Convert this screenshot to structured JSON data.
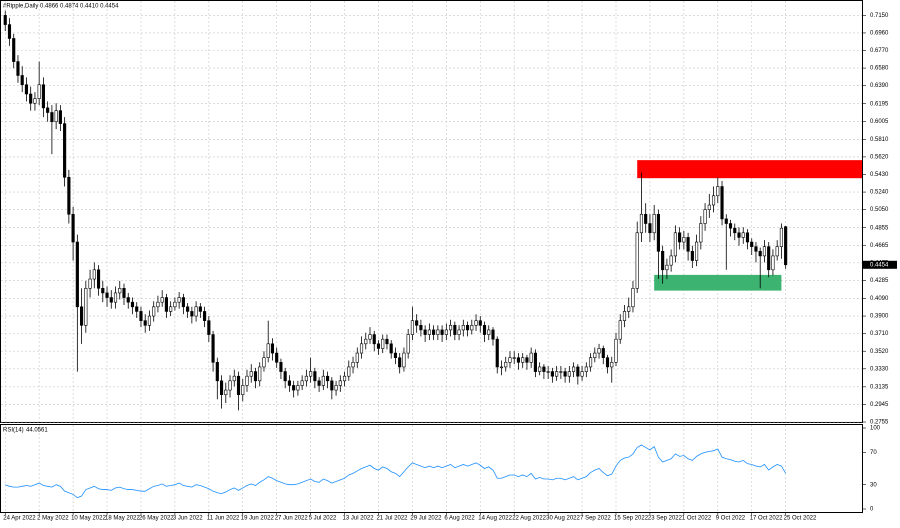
{
  "chart_data": {
    "type": "candlestick",
    "title": "#Ripple,Daily  0.4866 0.4874 0.4410 0.4454",
    "xlim": [
      -1,
      202
    ],
    "xticks": [
      {
        "value": 0,
        "label": "24 Apr 2022"
      },
      {
        "value": 8,
        "label": "2 May 2022"
      },
      {
        "value": 16,
        "label": "10 May 2022"
      },
      {
        "value": 24,
        "label": "18 May 2022"
      },
      {
        "value": 32,
        "label": "26 May 2022"
      },
      {
        "value": 40,
        "label": "3 Jun 2022"
      },
      {
        "value": 48,
        "label": "11 Jun 2022"
      },
      {
        "value": 56,
        "label": "19 Jun 2022"
      },
      {
        "value": 64,
        "label": "27 Jun 2022"
      },
      {
        "value": 72,
        "label": "5 Jul 2022"
      },
      {
        "value": 80,
        "label": "13 Jul 2022"
      },
      {
        "value": 88,
        "label": "21 Jul 2022"
      },
      {
        "value": 96,
        "label": "29 Jul 2022"
      },
      {
        "value": 104,
        "label": "6 Aug 2022"
      },
      {
        "value": 112,
        "label": "14 Aug 2022"
      },
      {
        "value": 120,
        "label": "22 Aug 2022"
      },
      {
        "value": 128,
        "label": "30 Aug 2022"
      },
      {
        "value": 136,
        "label": "7 Sep 2022"
      },
      {
        "value": 144,
        "label": "15 Sep 2022"
      },
      {
        "value": 152,
        "label": "23 Sep 2022"
      },
      {
        "value": 160,
        "label": "1 Oct 2022"
      },
      {
        "value": 168,
        "label": "9 Oct 2022"
      },
      {
        "value": 176,
        "label": "17 Oct 2022"
      },
      {
        "value": 184,
        "label": "25 Oct 2022"
      }
    ],
    "ylim": [
      0.2755,
      0.7305
    ],
    "yticks": [
      {
        "value": 0.715,
        "label": "0.7150"
      },
      {
        "value": 0.696,
        "label": "0.6960"
      },
      {
        "value": 0.677,
        "label": "0.6770"
      },
      {
        "value": 0.658,
        "label": "0.6580"
      },
      {
        "value": 0.639,
        "label": "0.6390"
      },
      0.6195,
      0.6005,
      {
        "value": 0.581,
        "label": "0.5810"
      },
      {
        "value": 0.562,
        "label": "0.5620"
      },
      {
        "value": 0.543,
        "label": "0.5430"
      },
      {
        "value": 0.524,
        "label": "0.5240"
      },
      {
        "value": 0.505,
        "label": "0.5050"
      },
      0.4855,
      0.4665,
      0.4475,
      0.4285,
      {
        "value": 0.409,
        "label": "0.4090"
      },
      {
        "value": 0.39,
        "label": "0.3900"
      },
      {
        "value": 0.371,
        "label": "0.3710"
      },
      {
        "value": 0.352,
        "label": "0.3520"
      },
      {
        "value": 0.333,
        "label": "0.3330"
      },
      0.3135,
      0.2945,
      0.2755
    ],
    "grid": true,
    "up_color": "#ffffff",
    "down_color": "#000000",
    "last_price": 0.4454,
    "zones": [
      {
        "color": "#ff0000",
        "x0": 149,
        "x1": 202,
        "y0": 0.539,
        "y1": 0.5585
      },
      {
        "color": "#3cb371",
        "x0": 153,
        "x1": 183,
        "y0": 0.4175,
        "y1": 0.4345
      }
    ],
    "open": [
      0.715,
      0.705,
      0.69,
      0.665,
      0.65,
      0.64,
      0.63,
      0.62,
      0.625,
      0.64,
      0.615,
      0.61,
      0.6,
      0.612,
      0.598,
      0.54,
      0.5,
      0.47,
      0.4,
      0.38,
      0.42,
      0.43,
      0.44,
      0.42,
      0.415,
      0.41,
      0.405,
      0.415,
      0.42,
      0.41,
      0.405,
      0.4,
      0.395,
      0.385,
      0.38,
      0.39,
      0.4,
      0.405,
      0.41,
      0.395,
      0.4,
      0.405,
      0.41,
      0.4,
      0.395,
      0.39,
      0.4,
      0.395,
      0.385,
      0.37,
      0.34,
      0.32,
      0.305,
      0.31,
      0.32,
      0.325,
      0.305,
      0.315,
      0.325,
      0.33,
      0.32,
      0.335,
      0.345,
      0.36,
      0.35,
      0.34,
      0.33,
      0.32,
      0.315,
      0.31,
      0.315,
      0.32,
      0.325,
      0.33,
      0.32,
      0.315,
      0.325,
      0.32,
      0.31,
      0.315,
      0.32,
      0.325,
      0.335,
      0.34,
      0.35,
      0.36,
      0.365,
      0.37,
      0.36,
      0.355,
      0.365,
      0.36,
      0.35,
      0.345,
      0.335,
      0.35,
      0.37,
      0.385,
      0.38,
      0.375,
      0.37,
      0.375,
      0.37,
      0.375,
      0.37,
      0.375,
      0.38,
      0.37,
      0.375,
      0.38,
      0.375,
      0.38,
      0.385,
      0.38,
      0.37,
      0.375,
      0.365,
      0.335,
      0.335,
      0.34,
      0.345,
      0.345,
      0.34,
      0.345,
      0.34,
      0.35,
      0.33,
      0.335,
      0.33,
      0.33,
      0.325,
      0.33,
      0.33,
      0.325,
      0.33,
      0.335,
      0.325,
      0.33,
      0.335,
      0.345,
      0.35,
      0.355,
      0.345,
      0.335,
      0.34,
      0.365,
      0.385,
      0.395,
      0.4,
      0.42,
      0.48,
      0.5,
      0.49,
      0.48,
      0.5,
      0.46,
      0.44,
      0.445,
      0.455,
      0.48,
      0.47,
      0.475,
      0.46,
      0.45,
      0.47,
      0.49,
      0.505,
      0.51,
      0.52,
      0.53,
      0.495,
      0.49,
      0.485,
      0.48,
      0.475,
      0.48,
      0.47,
      0.465,
      0.46,
      0.455,
      0.465,
      0.44,
      0.455,
      0.465,
      0.4866
    ],
    "high": [
      0.72,
      0.712,
      0.695,
      0.672,
      0.66,
      0.648,
      0.638,
      0.632,
      0.665,
      0.648,
      0.622,
      0.618,
      0.62,
      0.618,
      0.605,
      0.548,
      0.508,
      0.478,
      0.42,
      0.428,
      0.44,
      0.448,
      0.445,
      0.428,
      0.422,
      0.418,
      0.422,
      0.428,
      0.425,
      0.415,
      0.41,
      0.405,
      0.4,
      0.392,
      0.396,
      0.406,
      0.412,
      0.418,
      0.414,
      0.406,
      0.41,
      0.416,
      0.414,
      0.404,
      0.4,
      0.406,
      0.404,
      0.4,
      0.39,
      0.374,
      0.345,
      0.326,
      0.318,
      0.326,
      0.332,
      0.33,
      0.322,
      0.332,
      0.338,
      0.334,
      0.34,
      0.352,
      0.385,
      0.366,
      0.356,
      0.344,
      0.334,
      0.326,
      0.32,
      0.32,
      0.326,
      0.332,
      0.345,
      0.334,
      0.324,
      0.332,
      0.33,
      0.324,
      0.32,
      0.326,
      0.33,
      0.342,
      0.346,
      0.356,
      0.368,
      0.372,
      0.378,
      0.374,
      0.364,
      0.37,
      0.37,
      0.364,
      0.356,
      0.35,
      0.356,
      0.376,
      0.4,
      0.392,
      0.386,
      0.38,
      0.382,
      0.38,
      0.38,
      0.38,
      0.382,
      0.386,
      0.384,
      0.38,
      0.386,
      0.384,
      0.386,
      0.392,
      0.39,
      0.384,
      0.38,
      0.378,
      0.368,
      0.342,
      0.346,
      0.352,
      0.352,
      0.35,
      0.35,
      0.348,
      0.356,
      0.354,
      0.34,
      0.338,
      0.336,
      0.334,
      0.336,
      0.336,
      0.334,
      0.336,
      0.34,
      0.338,
      0.336,
      0.34,
      0.35,
      0.356,
      0.36,
      0.358,
      0.348,
      0.346,
      0.372,
      0.392,
      0.402,
      0.41,
      0.428,
      0.492,
      0.545,
      0.512,
      0.5,
      0.51,
      0.505,
      0.466,
      0.452,
      0.462,
      0.488,
      0.486,
      0.482,
      0.48,
      0.466,
      0.478,
      0.498,
      0.512,
      0.522,
      0.53,
      0.54,
      0.536,
      0.5,
      0.494,
      0.49,
      0.486,
      0.486,
      0.484,
      0.474,
      0.47,
      0.464,
      0.472,
      0.47,
      0.462,
      0.472,
      0.49,
      0.4874
    ],
    "low": [
      0.698,
      0.682,
      0.658,
      0.642,
      0.632,
      0.622,
      0.612,
      0.612,
      0.618,
      0.605,
      0.6,
      0.565,
      0.592,
      0.59,
      0.53,
      0.49,
      0.45,
      0.33,
      0.36,
      0.372,
      0.41,
      0.42,
      0.412,
      0.405,
      0.4,
      0.398,
      0.398,
      0.408,
      0.402,
      0.398,
      0.392,
      0.388,
      0.378,
      0.372,
      0.374,
      0.384,
      0.394,
      0.4,
      0.388,
      0.39,
      0.396,
      0.398,
      0.392,
      0.388,
      0.382,
      0.384,
      0.388,
      0.378,
      0.362,
      0.33,
      0.3,
      0.29,
      0.296,
      0.302,
      0.314,
      0.288,
      0.298,
      0.308,
      0.318,
      0.312,
      0.314,
      0.33,
      0.34,
      0.342,
      0.334,
      0.322,
      0.312,
      0.308,
      0.302,
      0.304,
      0.31,
      0.314,
      0.318,
      0.312,
      0.308,
      0.31,
      0.312,
      0.3,
      0.304,
      0.308,
      0.314,
      0.32,
      0.328,
      0.334,
      0.344,
      0.354,
      0.36,
      0.352,
      0.348,
      0.35,
      0.354,
      0.344,
      0.338,
      0.328,
      0.33,
      0.344,
      0.364,
      0.372,
      0.368,
      0.362,
      0.364,
      0.364,
      0.364,
      0.362,
      0.364,
      0.368,
      0.364,
      0.364,
      0.368,
      0.368,
      0.37,
      0.374,
      0.372,
      0.362,
      0.364,
      0.358,
      0.328,
      0.326,
      0.33,
      0.334,
      0.338,
      0.332,
      0.334,
      0.332,
      0.334,
      0.324,
      0.326,
      0.322,
      0.322,
      0.318,
      0.32,
      0.322,
      0.318,
      0.318,
      0.324,
      0.316,
      0.32,
      0.324,
      0.33,
      0.34,
      0.344,
      0.338,
      0.328,
      0.318,
      0.336,
      0.36,
      0.378,
      0.388,
      0.394,
      0.415,
      0.47,
      0.48,
      0.47,
      0.472,
      0.43,
      0.425,
      0.43,
      0.438,
      0.448,
      0.462,
      0.462,
      0.45,
      0.442,
      0.444,
      0.462,
      0.482,
      0.496,
      0.502,
      0.512,
      0.488,
      0.44,
      0.476,
      0.472,
      0.466,
      0.468,
      0.462,
      0.456,
      0.448,
      0.42,
      0.448,
      0.432,
      0.434,
      0.45,
      0.452,
      0.441
    ],
    "close": [
      0.705,
      0.69,
      0.665,
      0.65,
      0.64,
      0.63,
      0.62,
      0.625,
      0.64,
      0.615,
      0.61,
      0.6,
      0.612,
      0.598,
      0.54,
      0.5,
      0.47,
      0.4,
      0.38,
      0.42,
      0.43,
      0.44,
      0.42,
      0.415,
      0.41,
      0.405,
      0.415,
      0.42,
      0.41,
      0.405,
      0.4,
      0.395,
      0.385,
      0.38,
      0.39,
      0.4,
      0.405,
      0.41,
      0.395,
      0.4,
      0.405,
      0.41,
      0.4,
      0.395,
      0.39,
      0.4,
      0.395,
      0.385,
      0.37,
      0.34,
      0.32,
      0.305,
      0.31,
      0.32,
      0.325,
      0.305,
      0.315,
      0.325,
      0.33,
      0.32,
      0.335,
      0.345,
      0.36,
      0.35,
      0.34,
      0.33,
      0.32,
      0.315,
      0.31,
      0.315,
      0.32,
      0.325,
      0.33,
      0.32,
      0.315,
      0.325,
      0.32,
      0.31,
      0.315,
      0.32,
      0.325,
      0.335,
      0.34,
      0.35,
      0.36,
      0.365,
      0.37,
      0.36,
      0.355,
      0.365,
      0.36,
      0.35,
      0.345,
      0.335,
      0.35,
      0.37,
      0.385,
      0.38,
      0.375,
      0.37,
      0.375,
      0.37,
      0.375,
      0.37,
      0.375,
      0.38,
      0.37,
      0.375,
      0.38,
      0.375,
      0.38,
      0.385,
      0.38,
      0.37,
      0.375,
      0.365,
      0.335,
      0.335,
      0.34,
      0.345,
      0.345,
      0.34,
      0.345,
      0.34,
      0.35,
      0.33,
      0.335,
      0.33,
      0.33,
      0.325,
      0.33,
      0.33,
      0.325,
      0.33,
      0.335,
      0.325,
      0.33,
      0.335,
      0.345,
      0.35,
      0.355,
      0.345,
      0.335,
      0.34,
      0.365,
      0.385,
      0.395,
      0.4,
      0.42,
      0.48,
      0.5,
      0.49,
      0.48,
      0.5,
      0.46,
      0.44,
      0.445,
      0.455,
      0.48,
      0.47,
      0.475,
      0.46,
      0.45,
      0.47,
      0.49,
      0.505,
      0.51,
      0.52,
      0.53,
      0.495,
      0.49,
      0.485,
      0.48,
      0.475,
      0.48,
      0.47,
      0.465,
      0.46,
      0.455,
      0.465,
      0.44,
      0.455,
      0.465,
      0.485,
      0.4454
    ],
    "rsi_title": "RSI(14)",
    "rsi_color": "#1e90ff",
    "rsi_ylim": [
      0,
      100
    ],
    "rsi_yticks": [
      100,
      70,
      30,
      0
    ],
    "rsi": [
      30,
      28,
      27,
      27,
      28,
      29,
      28,
      30,
      32,
      29,
      28,
      27,
      30,
      28,
      22,
      20,
      18,
      14,
      16,
      24,
      26,
      28,
      25,
      24,
      24,
      23,
      26,
      27,
      25,
      24,
      24,
      23,
      22,
      22,
      25,
      28,
      29,
      31,
      28,
      29,
      30,
      32,
      29,
      28,
      27,
      30,
      29,
      27,
      25,
      22,
      20,
      19,
      21,
      24,
      26,
      23,
      26,
      29,
      31,
      29,
      33,
      36,
      40,
      38,
      35,
      33,
      31,
      30,
      30,
      31,
      33,
      35,
      37,
      34,
      33,
      37,
      35,
      32,
      34,
      36,
      38,
      42,
      44,
      47,
      50,
      52,
      54,
      50,
      48,
      52,
      50,
      46,
      44,
      40,
      46,
      52,
      57,
      55,
      53,
      51,
      53,
      51,
      53,
      51,
      53,
      55,
      51,
      53,
      55,
      53,
      55,
      57,
      54,
      50,
      52,
      48,
      38,
      38,
      40,
      42,
      42,
      40,
      42,
      40,
      44,
      37,
      39,
      37,
      37,
      36,
      38,
      38,
      36,
      38,
      40,
      36,
      38,
      40,
      45,
      48,
      50,
      45,
      41,
      43,
      53,
      60,
      63,
      64,
      68,
      76,
      79,
      76,
      73,
      77,
      64,
      58,
      60,
      62,
      68,
      65,
      66,
      62,
      60,
      65,
      68,
      70,
      71,
      72,
      74,
      64,
      62,
      61,
      59,
      58,
      60,
      56,
      55,
      53,
      52,
      55,
      48,
      52,
      55,
      53,
      44.0561
    ]
  }
}
